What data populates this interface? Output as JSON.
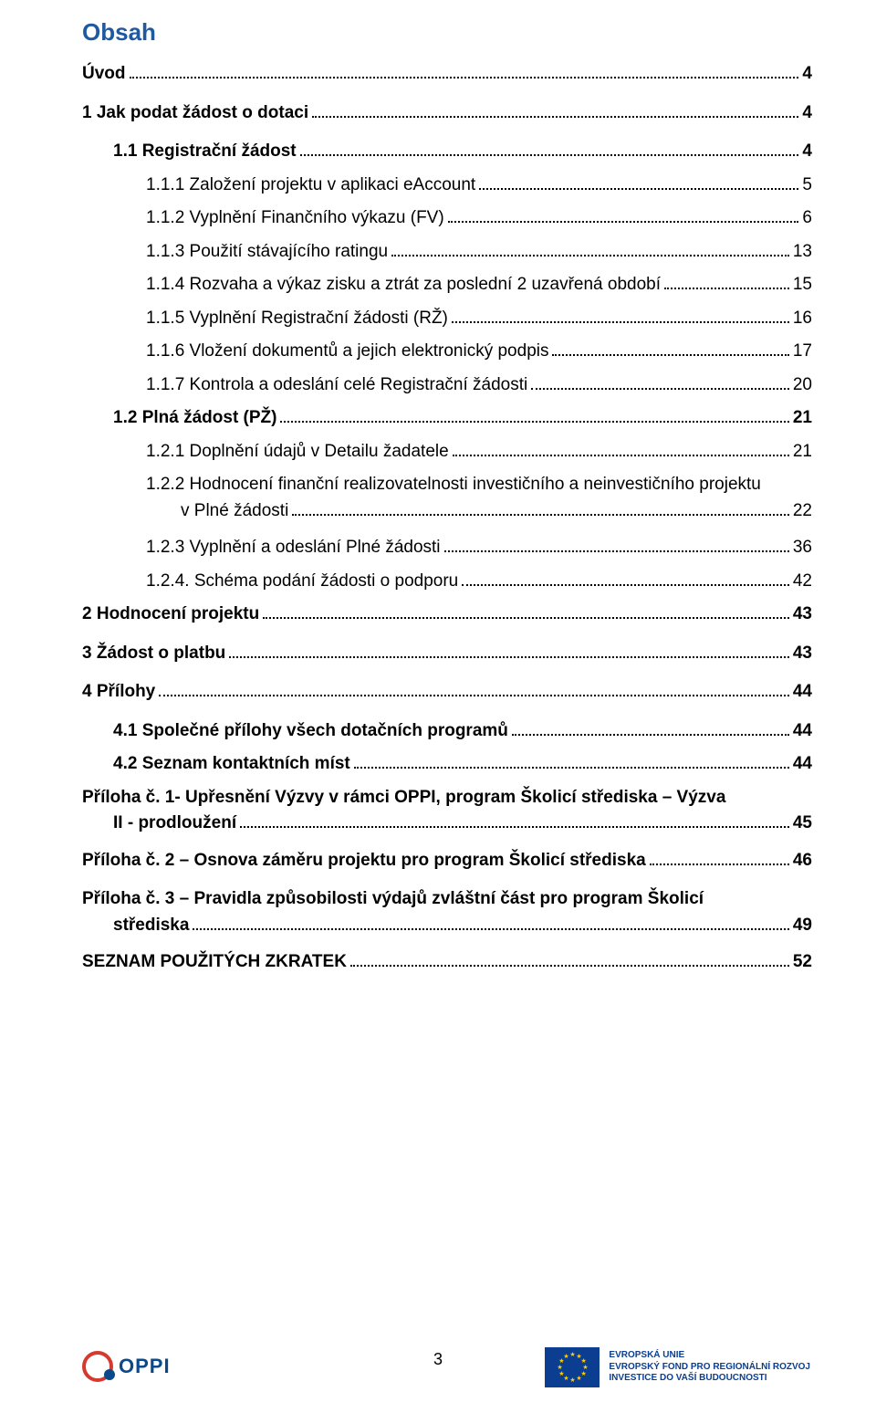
{
  "title": "Obsah",
  "title_color": "#1f5aa0",
  "text_color": "#000000",
  "page_number": "3",
  "entries": [
    {
      "label": "Úvod",
      "page": "4",
      "level": 0,
      "bold": true
    },
    {
      "label": "1   Jak podat žádost o dotaci",
      "page": "4",
      "level": 0,
      "bold": true
    },
    {
      "label": "1.1   Registrační žádost",
      "page": "4",
      "level": 1,
      "bold": true
    },
    {
      "label": "1.1.1   Založení projektu v aplikaci eAccount",
      "page": "5",
      "level": 2,
      "bold": false
    },
    {
      "label": "1.1.2   Vyplnění Finančního výkazu (FV)",
      "page": "6",
      "level": 2,
      "bold": false
    },
    {
      "label": "1.1.3   Použití stávajícího ratingu",
      "page": "13",
      "level": 2,
      "bold": false
    },
    {
      "label": "1.1.4   Rozvaha a výkaz zisku a ztrát za poslední 2 uzavřená období",
      "page": "15",
      "level": 2,
      "bold": false
    },
    {
      "label": "1.1.5   Vyplnění Registrační žádosti (RŽ)",
      "page": "16",
      "level": 2,
      "bold": false
    },
    {
      "label": "1.1.6   Vložení dokumentů a jejich elektronický podpis",
      "page": "17",
      "level": 2,
      "bold": false
    },
    {
      "label": "1.1.7   Kontrola a odeslání celé Registrační žádosti",
      "page": "20",
      "level": 2,
      "bold": false
    },
    {
      "label": "1.2   Plná žádost (PŽ)",
      "page": "21",
      "level": 1,
      "bold": true
    },
    {
      "label": "1.2.1   Doplnění údajů v Detailu žadatele",
      "page": "21",
      "level": 2,
      "bold": false
    },
    {
      "label": "1.2.2   Hodnocení finanční realizovatelnosti investičního a neinvestičního projektu",
      "label2": "v Plné žádosti",
      "page": "22",
      "level": 2,
      "bold": false,
      "multiline": true,
      "indent2": 3
    },
    {
      "label": "1.2.3   Vyplnění a odeslání Plné žádosti",
      "page": "36",
      "level": 2,
      "bold": false
    },
    {
      "label": "1.2.4.   Schéma podání žádosti o podporu",
      "page": "42",
      "level": 2,
      "bold": false
    },
    {
      "label": "2   Hodnocení projektu",
      "page": "43",
      "level": 0,
      "bold": true
    },
    {
      "label": "3   Žádost o platbu",
      "page": "43",
      "level": 0,
      "bold": true
    },
    {
      "label": "4 Přílohy",
      "page": "44",
      "level": 0,
      "bold": true
    },
    {
      "label": "4.1 Společné přílohy všech dotačních programů",
      "page": "44",
      "level": 1,
      "bold": true
    },
    {
      "label": "4.2 Seznam kontaktních míst",
      "page": "44",
      "level": 1,
      "bold": true
    },
    {
      "label": "Příloha č. 1- Upřesnění Výzvy v rámci OPPI, program Školicí střediska – Výzva",
      "label2": "II - prodloužení",
      "page": "45",
      "level": 0,
      "bold": true,
      "multiline": true,
      "indent2": 1
    },
    {
      "label": "Příloha č. 2 – Osnova záměru projektu pro program Školicí střediska",
      "page": "46",
      "level": 0,
      "bold": true
    },
    {
      "label": "Příloha č. 3 – Pravidla způsobilosti výdajů zvláštní část pro program Školicí",
      "label2": "střediska",
      "page": "49",
      "level": 0,
      "bold": true,
      "multiline": true,
      "indent2": 1
    },
    {
      "label": "SEZNAM POUŽITÝCH ZKRATEK",
      "page": "52",
      "level": 0,
      "bold": true
    }
  ],
  "footer": {
    "oppi_label": "OPPI",
    "eu_line1": "EVROPSKÁ UNIE",
    "eu_line2": "EVROPSKÝ FOND PRO REGIONÁLNÍ ROZVOJ",
    "eu_line3": "INVESTICE DO VAŠÍ BUDOUCNOSTI",
    "eu_flag_bg": "#0b3e91",
    "eu_star_color": "#ffcc00",
    "oppi_ring_color": "#d63a2f",
    "oppi_dot_color": "#0b4a8a"
  }
}
